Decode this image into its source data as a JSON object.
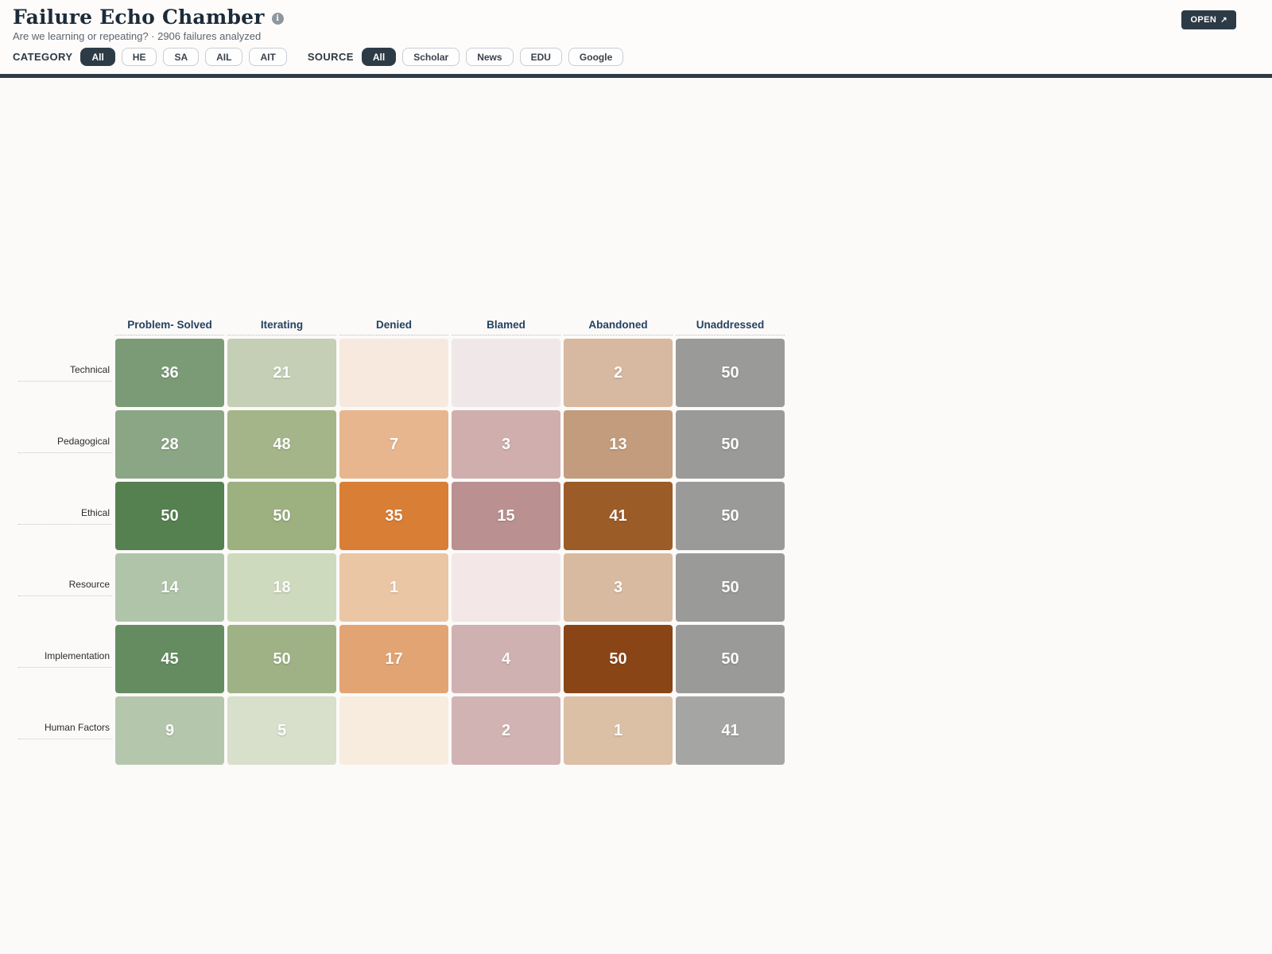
{
  "header": {
    "title": "Failure Echo Chamber",
    "info_icon": "i",
    "subtitle": "Are we learning or repeating? · 2906 failures analyzed",
    "open_button": {
      "label": "OPEN",
      "icon": "↗"
    }
  },
  "filters": {
    "category": {
      "label": "CATEGORY",
      "active": "All",
      "options": [
        "All",
        "HE",
        "SA",
        "AIL",
        "AIT"
      ]
    },
    "source": {
      "label": "SOURCE",
      "active": "All",
      "options": [
        "All",
        "Scholar",
        "News",
        "EDU",
        "Google"
      ]
    }
  },
  "heatmap": {
    "columns": [
      "Problem- Solved",
      "Iterating",
      "Denied",
      "Blamed",
      "Abandoned",
      "Unaddressed"
    ],
    "rows": [
      {
        "label": "Technical",
        "cells": [
          {
            "value": "36",
            "color": "#7b9b77"
          },
          {
            "value": "21",
            "color": "#c4cfb5"
          },
          {
            "value": "",
            "color": "#f7e9de"
          },
          {
            "value": "",
            "color": "#f0e7e9"
          },
          {
            "value": "2",
            "color": "#d7b8a0"
          },
          {
            "value": "50",
            "color": "#9a9a99"
          }
        ]
      },
      {
        "label": "Pedagogical",
        "cells": [
          {
            "value": "28",
            "color": "#8ba685"
          },
          {
            "value": "48",
            "color": "#a5b58a"
          },
          {
            "value": "7",
            "color": "#e8b68e"
          },
          {
            "value": "3",
            "color": "#d0aeae"
          },
          {
            "value": "13",
            "color": "#c29c7d"
          },
          {
            "value": "50",
            "color": "#9a9a99"
          }
        ]
      },
      {
        "label": "Ethical",
        "cells": [
          {
            "value": "50",
            "color": "#55804f"
          },
          {
            "value": "50",
            "color": "#9db080"
          },
          {
            "value": "35",
            "color": "#d97e35"
          },
          {
            "value": "15",
            "color": "#ba9090"
          },
          {
            "value": "41",
            "color": "#9b5c28"
          },
          {
            "value": "50",
            "color": "#9a9a99"
          }
        ]
      },
      {
        "label": "Resource",
        "cells": [
          {
            "value": "14",
            "color": "#b0c4aa"
          },
          {
            "value": "18",
            "color": "#cedabd"
          },
          {
            "value": "1",
            "color": "#eac6a4"
          },
          {
            "value": "",
            "color": "#f3e7e7"
          },
          {
            "value": "3",
            "color": "#d8baa0"
          },
          {
            "value": "50",
            "color": "#9a9a99"
          }
        ]
      },
      {
        "label": "Implementation",
        "cells": [
          {
            "value": "45",
            "color": "#648c60"
          },
          {
            "value": "50",
            "color": "#9eb285"
          },
          {
            "value": "17",
            "color": "#e3a474"
          },
          {
            "value": "4",
            "color": "#d0b1b1"
          },
          {
            "value": "50",
            "color": "#8a4516"
          },
          {
            "value": "50",
            "color": "#9a9a99"
          }
        ]
      },
      {
        "label": "Human Factors",
        "cells": [
          {
            "value": "9",
            "color": "#b4c7ad"
          },
          {
            "value": "5",
            "color": "#d8dfca"
          },
          {
            "value": "",
            "color": "#f8ecdf"
          },
          {
            "value": "2",
            "color": "#d1b3b3"
          },
          {
            "value": "1",
            "color": "#dbc0a6"
          },
          {
            "value": "41",
            "color": "#a5a5a4"
          }
        ]
      }
    ]
  },
  "chart_data": {
    "type": "heatmap",
    "title": "Failure Echo Chamber",
    "subtitle": "Are we learning or repeating? · 2906 failures analyzed",
    "x_categories": [
      "Problem- Solved",
      "Iterating",
      "Denied",
      "Blamed",
      "Abandoned",
      "Unaddressed"
    ],
    "y_categories": [
      "Technical",
      "Pedagogical",
      "Ethical",
      "Resource",
      "Implementation",
      "Human Factors"
    ],
    "values": [
      [
        36,
        21,
        null,
        null,
        2,
        50
      ],
      [
        28,
        48,
        7,
        3,
        13,
        50
      ],
      [
        50,
        50,
        35,
        15,
        41,
        50
      ],
      [
        14,
        18,
        1,
        null,
        3,
        50
      ],
      [
        45,
        50,
        17,
        4,
        50,
        50
      ],
      [
        9,
        5,
        null,
        2,
        1,
        41
      ]
    ],
    "value_range": [
      0,
      50
    ],
    "legend_position": "none",
    "notes": "Green = solved/iterating, orange/brown = denied/abandoned, gray = unaddressed; blank cells have no value shown"
  },
  "colors": {
    "accent_dark": "#2d3b47",
    "header_text": "#254260",
    "page_bg": "#fbfaf8"
  }
}
